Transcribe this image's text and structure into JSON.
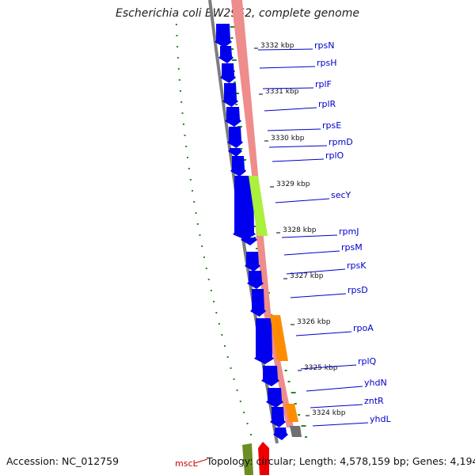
{
  "title": "Escherichia coli BW2952, complete genome",
  "accession": "Accession: NC_012759",
  "topology_info": "Topology: circular; Length: 4,578,159 bp; Genes: 4,194",
  "colors": {
    "cds": "#0000ee",
    "gene_default": "#ef8c8c",
    "secY": "#aaf03c",
    "rpoA": "#ff8c00",
    "zntR": "#ff8c00",
    "yhdL": "#707070",
    "gc_skew": "#228b22",
    "backbone": "#808080",
    "label_line": "#0000cc",
    "mscL_label": "#cc0000"
  },
  "position_labels": [
    "3332 kbp",
    "3331 kbp",
    "3330 kbp",
    "3329 kbp",
    "3328 kbp",
    "3327 kbp",
    "3326 kbp",
    "3325 kbp",
    "3324 kbp"
  ],
  "gene_labels": [
    "rpsN",
    "rpsH",
    "rplF",
    "rplR",
    "rpsE",
    "rpmD",
    "rplO",
    "secY",
    "rpmJ",
    "rpsM",
    "rpsK",
    "rpsD",
    "rpoA",
    "rplQ",
    "yhdN",
    "zntR",
    "yhdL"
  ],
  "bottom_label": "mscL"
}
